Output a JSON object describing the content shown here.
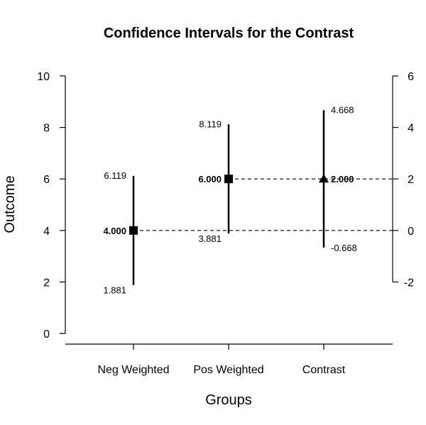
{
  "chart_data": {
    "type": "scatter",
    "title": "Confidence Intervals for the Contrast",
    "xlabel": "Groups",
    "ylabel": "Outcome",
    "categories": [
      "Neg Weighted",
      "Pos Weighted",
      "Contrast"
    ],
    "ylim_left": [
      0,
      10
    ],
    "yticks_left": [
      0,
      2,
      4,
      6,
      8,
      10
    ],
    "ylim_right": [
      -2,
      6
    ],
    "yticks_right": [
      -2,
      0,
      2,
      4,
      6
    ],
    "right_axis_offset": 4,
    "points": [
      {
        "category": "Neg Weighted",
        "marker": "square",
        "axis": "left",
        "estimate": 4.0,
        "lower": 1.881,
        "upper": 6.119,
        "estimate_label": "4.000",
        "lower_label": "1.881",
        "upper_label": "6.119"
      },
      {
        "category": "Pos Weighted",
        "marker": "square",
        "axis": "left",
        "estimate": 6.0,
        "lower": 3.881,
        "upper": 8.119,
        "estimate_label": "6.000",
        "lower_label": "3.881",
        "upper_label": "8.119"
      },
      {
        "category": "Contrast",
        "marker": "triangle",
        "axis": "right",
        "estimate": 2.0,
        "lower": -0.668,
        "upper": 4.668,
        "estimate_label": "2.000",
        "lower_label": "-0.668",
        "upper_label": "4.668"
      }
    ],
    "reference_lines": [
      4,
      6
    ],
    "grid": false,
    "legend": "none"
  }
}
